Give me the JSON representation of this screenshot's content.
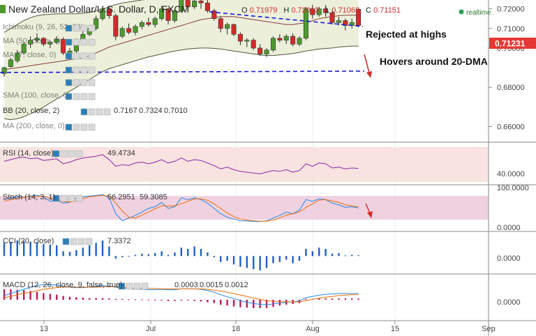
{
  "header": {
    "title": "New Zealand Dollar/U.S. Dollar, D, FXCM",
    "ohlc": [
      {
        "k": "O",
        "v": "0.71979"
      },
      {
        "k": "H",
        "v": "0.72013"
      },
      {
        "k": "L",
        "v": "0.71068"
      },
      {
        "k": "C",
        "v": "0.71151"
      }
    ],
    "realtime": "realtime"
  },
  "indicators": {
    "ichimoku": "Ichimoku (9, 26, 52, 26)",
    "ma50": "MA (50, close, 0)",
    "ma7": "MA (7, close, 0)",
    "ma100": "SMA (100, close, 0)",
    "bb": "BB (20, close, 2)",
    "bb_values": [
      "0.7167",
      "0.7324",
      "0.7010"
    ],
    "ma200": "MA (200, close, 0)"
  },
  "annotations": {
    "rejected": "Rejected at highs",
    "hovers": "Hovers around 20-DMA"
  },
  "price_badge": "0.71231",
  "panes": {
    "rsi": {
      "label": "RSI (14, close)",
      "value": "49.4734",
      "ticks": [
        "40.0000"
      ]
    },
    "stoch": {
      "label": "Stoch (14, 3, 1)",
      "k": "56.2951",
      "d": "59.3085",
      "ticks": [
        "100.0000",
        "0.0000"
      ]
    },
    "cci": {
      "label": "CCI (20, close)",
      "value": "7.3372",
      "ticks": [
        "0.0000"
      ]
    },
    "macd": {
      "label": "MACD (12, 26, close, 9, false, true)",
      "v1": "0.0003",
      "v2": "0.0015",
      "v3": "0.0012",
      "ticks": [
        "0.0000"
      ]
    }
  },
  "colors": {
    "up": "#4e9a2e",
    "down": "#d42a2a",
    "bb": "#4a5a3a",
    "ma": "#8b3a3a",
    "rsi": "#8e24aa",
    "stoch_k": "#1e88e5",
    "stoch_d": "#ef6c00",
    "cci": "#1e5fc9",
    "macd_hist": "#c2185b",
    "macd_line": "#1e88e5",
    "macd_signal": "#ef6c00",
    "trend": "#1a1adb",
    "badge": "#e53935"
  },
  "chart_data": [
    {
      "type": "candlestick",
      "name": "NZD/USD daily",
      "yticks": [
        0.72,
        0.71,
        0.7,
        0.68,
        0.66
      ],
      "ylim": [
        0.652,
        0.7245
      ],
      "xticks": [
        "13",
        "Jul",
        "18",
        "Aug",
        "15",
        "Sep"
      ],
      "candles": [
        [
          0.687,
          0.6905,
          0.6855,
          0.69
        ],
        [
          0.6905,
          0.695,
          0.69,
          0.694
        ],
        [
          0.6935,
          0.699,
          0.6925,
          0.6975
        ],
        [
          0.6975,
          0.703,
          0.6965,
          0.702
        ],
        [
          0.702,
          0.706,
          0.7,
          0.704
        ],
        [
          0.704,
          0.7075,
          0.703,
          0.705
        ],
        [
          0.705,
          0.7055,
          0.701,
          0.702
        ],
        [
          0.702,
          0.704,
          0.7,
          0.703
        ],
        [
          0.703,
          0.706,
          0.702,
          0.7045
        ],
        [
          0.7045,
          0.7055,
          0.6965,
          0.6975
        ],
        [
          0.6975,
          0.7,
          0.695,
          0.6985
        ],
        [
          0.6985,
          0.705,
          0.6975,
          0.704
        ],
        [
          0.704,
          0.7085,
          0.703,
          0.707
        ],
        [
          0.707,
          0.711,
          0.706,
          0.71
        ],
        [
          0.71,
          0.7165,
          0.709,
          0.715
        ],
        [
          0.715,
          0.721,
          0.714,
          0.72
        ],
        [
          0.72,
          0.7215,
          0.715,
          0.7165
        ],
        [
          0.7165,
          0.7175,
          0.704,
          0.706
        ],
        [
          0.706,
          0.711,
          0.705,
          0.71
        ],
        [
          0.71,
          0.7125,
          0.707,
          0.708
        ],
        [
          0.708,
          0.712,
          0.7065,
          0.711
        ],
        [
          0.711,
          0.714,
          0.7095,
          0.713
        ],
        [
          0.713,
          0.7155,
          0.711,
          0.712
        ],
        [
          0.712,
          0.716,
          0.7105,
          0.715
        ],
        [
          0.715,
          0.7215,
          0.714,
          0.72
        ],
        [
          0.72,
          0.7205,
          0.712,
          0.714
        ],
        [
          0.714,
          0.72,
          0.713,
          0.719
        ],
        [
          0.719,
          0.727,
          0.718,
          0.725
        ],
        [
          0.725,
          0.7265,
          0.719,
          0.721
        ],
        [
          0.721,
          0.726,
          0.72,
          0.724
        ],
        [
          0.724,
          0.726,
          0.72,
          0.723
        ],
        [
          0.723,
          0.7245,
          0.718,
          0.719
        ],
        [
          0.719,
          0.72,
          0.714,
          0.715
        ],
        [
          0.715,
          0.716,
          0.708,
          0.71
        ],
        [
          0.71,
          0.713,
          0.707,
          0.712
        ],
        [
          0.712,
          0.7125,
          0.706,
          0.707
        ],
        [
          0.707,
          0.708,
          0.7015,
          0.7035
        ],
        [
          0.7035,
          0.705,
          0.7005,
          0.704
        ],
        [
          0.704,
          0.705,
          0.699,
          0.7
        ],
        [
          0.7,
          0.702,
          0.696,
          0.697
        ],
        [
          0.697,
          0.7,
          0.6955,
          0.699
        ],
        [
          0.699,
          0.706,
          0.698,
          0.705
        ],
        [
          0.705,
          0.707,
          0.703,
          0.704
        ],
        [
          0.704,
          0.707,
          0.702,
          0.706
        ],
        [
          0.706,
          0.7075,
          0.701,
          0.702
        ],
        [
          0.702,
          0.706,
          0.701,
          0.705
        ],
        [
          0.705,
          0.721,
          0.704,
          0.72
        ],
        [
          0.72,
          0.722,
          0.715,
          0.717
        ],
        [
          0.717,
          0.721,
          0.716,
          0.72
        ],
        [
          0.72,
          0.722,
          0.716,
          0.718
        ],
        [
          0.718,
          0.719,
          0.712,
          0.713
        ],
        [
          0.713,
          0.716,
          0.7115,
          0.714
        ],
        [
          0.714,
          0.715,
          0.709,
          0.7115
        ],
        [
          0.7115,
          0.715,
          0.71,
          0.713
        ],
        [
          0.7198,
          0.7201,
          0.7107,
          0.7115
        ]
      ],
      "bb_upper": [
        0.708,
        0.71,
        0.712,
        0.714,
        0.7155,
        0.7165,
        0.717,
        0.7172,
        0.7175,
        0.7175,
        0.7175,
        0.7175,
        0.7178,
        0.7182,
        0.719,
        0.72,
        0.721,
        0.7222,
        0.723,
        0.7235,
        0.724,
        0.7245,
        0.725,
        0.7255,
        0.7265,
        0.7272,
        0.728,
        0.729,
        0.7298,
        0.7305,
        0.731,
        0.7312,
        0.7312,
        0.731,
        0.7305,
        0.73,
        0.7295,
        0.7292,
        0.729,
        0.7288,
        0.7285,
        0.7285,
        0.7285,
        0.7285,
        0.7287,
        0.729,
        0.73,
        0.731,
        0.7315,
        0.732,
        0.7322,
        0.7323,
        0.7324,
        0.7324,
        0.7324
      ],
      "bb_lower": [
        0.664,
        0.6635,
        0.664,
        0.665,
        0.6665,
        0.668,
        0.67,
        0.672,
        0.674,
        0.676,
        0.678,
        0.68,
        0.682,
        0.684,
        0.686,
        0.688,
        0.6895,
        0.6905,
        0.6915,
        0.6925,
        0.6935,
        0.6945,
        0.6955,
        0.6962,
        0.697,
        0.6978,
        0.6985,
        0.699,
        0.6995,
        0.6998,
        0.7,
        0.7,
        0.6998,
        0.6995,
        0.699,
        0.6985,
        0.698,
        0.6975,
        0.697,
        0.6965,
        0.6962,
        0.6962,
        0.6965,
        0.6968,
        0.6972,
        0.6978,
        0.6985,
        0.699,
        0.6995,
        0.6998,
        0.7,
        0.7005,
        0.7008,
        0.701,
        0.701
      ],
      "ma": [
        0.689,
        0.6895,
        0.69,
        0.6905,
        0.691,
        0.6915,
        0.692,
        0.6925,
        0.693,
        0.6935,
        0.694,
        0.6945,
        0.695,
        0.696,
        0.6975,
        0.699,
        0.7005,
        0.7015,
        0.7025,
        0.7035,
        0.7045,
        0.7055,
        0.7065,
        0.7075,
        0.7085,
        0.7095,
        0.7105,
        0.7115,
        0.7125,
        0.7135,
        0.7145,
        0.715,
        0.7155,
        0.716,
        0.716,
        0.716,
        0.7155,
        0.715,
        0.7145,
        0.714,
        0.7135,
        0.713,
        0.7125,
        0.712,
        0.712,
        0.7125,
        0.713,
        0.714,
        0.715,
        0.7155,
        0.716,
        0.7165,
        0.7167,
        0.7167,
        0.7167
      ]
    },
    {
      "type": "line",
      "name": "RSI (14, close)",
      "ylim": [
        30,
        80
      ],
      "values": [
        58,
        60,
        62,
        63,
        61,
        62,
        59,
        60,
        61,
        55,
        57,
        60,
        62,
        63,
        64,
        66,
        60,
        52,
        54,
        53,
        56,
        57,
        55,
        57,
        60,
        56,
        58,
        62,
        58,
        60,
        59,
        56,
        53,
        49,
        51,
        48,
        46,
        45,
        44,
        43,
        45,
        47,
        46,
        48,
        45,
        47,
        55,
        52,
        56,
        55,
        50,
        51,
        49,
        50,
        49.5
      ]
    },
    {
      "type": "line",
      "name": "Stoch (14, 3, 1)",
      "ylim": [
        -10,
        120
      ],
      "series": [
        {
          "name": "%K",
          "values": [
            80,
            85,
            88,
            86,
            90,
            92,
            88,
            75,
            78,
            70,
            72,
            85,
            88,
            90,
            92,
            94,
            85,
            40,
            20,
            28,
            35,
            45,
            55,
            60,
            72,
            55,
            60,
            85,
            80,
            85,
            80,
            70,
            55,
            40,
            30,
            25,
            20,
            20,
            18,
            18,
            20,
            28,
            35,
            45,
            40,
            50,
            80,
            75,
            82,
            80,
            70,
            65,
            58,
            60,
            56.3
          ]
        },
        {
          "name": "%D",
          "values": [
            75,
            80,
            84,
            86,
            88,
            89,
            90,
            84,
            80,
            74,
            73,
            76,
            82,
            88,
            90,
            92,
            90,
            70,
            48,
            30,
            28,
            36,
            45,
            54,
            62,
            62,
            62,
            68,
            75,
            82,
            82,
            78,
            68,
            55,
            42,
            32,
            25,
            22,
            20,
            19,
            19,
            22,
            28,
            36,
            40,
            45,
            58,
            68,
            78,
            80,
            76,
            72,
            65,
            62,
            59.3
          ]
        }
      ]
    },
    {
      "type": "bar",
      "name": "CCI (20, close)",
      "ylim": [
        -150,
        200
      ],
      "values": [
        110,
        120,
        130,
        125,
        120,
        115,
        100,
        95,
        90,
        40,
        35,
        50,
        70,
        90,
        110,
        130,
        80,
        -20,
        -10,
        -5,
        10,
        20,
        15,
        25,
        40,
        10,
        30,
        70,
        60,
        80,
        60,
        30,
        -10,
        -50,
        -40,
        -70,
        -90,
        -100,
        -110,
        -120,
        -100,
        -60,
        -50,
        -30,
        -60,
        -40,
        60,
        40,
        70,
        60,
        20,
        25,
        5,
        10,
        7.3
      ]
    },
    {
      "type": "bar",
      "name": "MACD (12, 26, close, 9, false, true)",
      "ylim": [
        -0.005,
        0.006
      ],
      "histogram": [
        0.0025,
        0.0025,
        0.0024,
        0.0023,
        0.0021,
        0.0019,
        0.0016,
        0.0014,
        0.0012,
        0.0009,
        0.0007,
        0.0006,
        0.0005,
        0.0004,
        0.0004,
        0.0004,
        0.0003,
        0.0002,
        0.0002,
        0.0001,
        0.0001,
        0.0001,
        -0.0001,
        -0.0002,
        -0.0002,
        -0.0003,
        -0.0003,
        -0.0002,
        -0.0002,
        -0.0003,
        -0.0004,
        -0.0006,
        -0.0008,
        -0.0012,
        -0.0014,
        -0.0016,
        -0.0018,
        -0.0019,
        -0.002,
        -0.002,
        -0.002,
        -0.0017,
        -0.0014,
        -0.0012,
        -0.001,
        -0.0008,
        0.0002,
        0.0002,
        0.0003,
        0.0003,
        0.0003,
        0.0003,
        0.0003,
        0.0003,
        0.0003
      ],
      "series": [
        {
          "name": "MACD",
          "values": [
            0.001,
            0.0015,
            0.002,
            0.0025,
            0.003,
            0.0034,
            0.0036,
            0.0036,
            0.0035,
            0.0032,
            0.003,
            0.0029,
            0.0029,
            0.003,
            0.0032,
            0.0034,
            0.0033,
            0.003,
            0.0028,
            0.0026,
            0.0025,
            0.0025,
            0.0024,
            0.0024,
            0.0025,
            0.0024,
            0.0024,
            0.0026,
            0.0026,
            0.0026,
            0.0025,
            0.0022,
            0.0018,
            0.0012,
            0.0007,
            0.0003,
            -0.0002,
            -0.0006,
            -0.0009,
            -0.0011,
            -0.0012,
            -0.001,
            -0.0008,
            -0.0006,
            -0.0005,
            -0.0003,
            0.0005,
            0.0008,
            0.0011,
            0.0013,
            0.0014,
            0.0015,
            0.0015,
            0.0015,
            0.0015
          ]
        },
        {
          "name": "Signal",
          "values": [
            0.0005,
            0.0008,
            0.0012,
            0.0015,
            0.0018,
            0.0022,
            0.0025,
            0.0027,
            0.0029,
            0.003,
            0.0031,
            0.003,
            0.003,
            0.003,
            0.003,
            0.0031,
            0.0031,
            0.0031,
            0.003,
            0.0029,
            0.0028,
            0.0028,
            0.0027,
            0.0027,
            0.0026,
            0.0026,
            0.0026,
            0.0026,
            0.0026,
            0.0026,
            0.0026,
            0.0025,
            0.0023,
            0.0021,
            0.0018,
            0.0015,
            0.0011,
            0.0008,
            0.0004,
            0.0001,
            -0.0002,
            -0.0004,
            -0.0005,
            -0.0005,
            -0.0005,
            -0.0005,
            -0.0002,
            0.0001,
            0.0004,
            0.0006,
            0.0008,
            0.001,
            0.0011,
            0.0012,
            0.0012
          ]
        }
      ]
    }
  ]
}
